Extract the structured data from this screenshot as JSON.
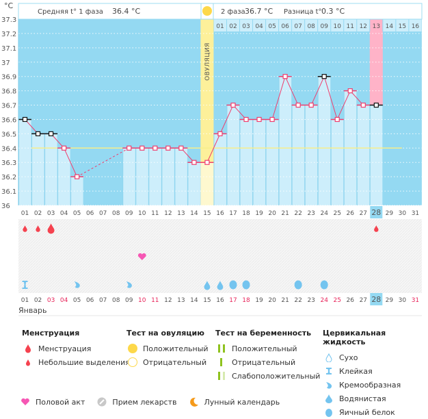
{
  "header": {
    "phase1_label": "Средняя t° 1 фаза",
    "phase1_value": "36.4 °C",
    "phase2_label": "2 фаза",
    "phase2_value": "36.7 °C",
    "diff_label": "Разница t°",
    "diff_value": "0.3 °C",
    "ovulation_label": "ОВУЛЯЦИЯ",
    "unit_label": "°C"
  },
  "colors": {
    "plot_bg": "#94d9f2",
    "bar_fill": "#cdeefb",
    "ovulation": "#fdf09a",
    "ovulation_light": "#fef8cf",
    "highlight_day": "#ffb3c8",
    "line": "#ef3e6e",
    "coverline": "#f7ee8a",
    "menstruation": "#f5424f",
    "intercourse": "#f657b4",
    "cervical": "#74c4ef",
    "red_date": "#e8245a"
  },
  "chart_data": {
    "type": "line",
    "title": "",
    "xlabel": "Январь",
    "ylabel": "°C",
    "ylim": [
      36,
      37.3
    ],
    "yticks": [
      "36",
      "36.1",
      "36.2",
      "36.3",
      "36.4",
      "36.5",
      "36.6",
      "36.7",
      "36.8",
      "36.9",
      "37",
      "37.1",
      "37.2",
      "37.3"
    ],
    "grid": true,
    "days": [
      "01",
      "02",
      "03",
      "04",
      "05",
      "06",
      "07",
      "08",
      "09",
      "10",
      "11",
      "12",
      "13",
      "14",
      "15",
      "16",
      "17",
      "18",
      "19",
      "20",
      "21",
      "22",
      "23",
      "24",
      "25",
      "26",
      "27",
      "28",
      "29",
      "30",
      "31"
    ],
    "temperatures": [
      36.6,
      36.5,
      36.5,
      36.4,
      36.2,
      null,
      null,
      null,
      36.4,
      36.4,
      36.4,
      36.4,
      36.4,
      36.3,
      36.3,
      36.5,
      36.7,
      36.6,
      36.6,
      36.6,
      36.9,
      36.7,
      36.7,
      36.9,
      36.6,
      36.8,
      36.7,
      36.7,
      null,
      null,
      null
    ],
    "special_points": [
      "01",
      "02",
      "03",
      "24",
      "28"
    ],
    "coverline": 36.4,
    "ovulation_day": "15",
    "phase2_day_labels": [
      "01",
      "02",
      "03",
      "04",
      "05",
      "06",
      "07",
      "08",
      "09",
      "10",
      "11",
      "12",
      "13",
      "14",
      "15",
      "16"
    ],
    "phase2_highlight_label": "13",
    "today": "28",
    "red_dates": [
      "03",
      "04",
      "10",
      "11",
      "17",
      "18",
      "24",
      "25",
      "31"
    ],
    "menstruation": [
      {
        "day": "01",
        "kind": "small"
      },
      {
        "day": "02",
        "kind": "small"
      },
      {
        "day": "03",
        "kind": "full"
      },
      {
        "day": "28",
        "kind": "small"
      }
    ],
    "intercourse": [
      "10"
    ],
    "cervical_fluid": [
      {
        "day": "01",
        "kind": "sticky"
      },
      {
        "day": "05",
        "kind": "creamy"
      },
      {
        "day": "09",
        "kind": "creamy"
      },
      {
        "day": "15",
        "kind": "watery"
      },
      {
        "day": "16",
        "kind": "watery"
      },
      {
        "day": "17",
        "kind": "eggwhite"
      },
      {
        "day": "18",
        "kind": "eggwhite"
      },
      {
        "day": "22",
        "kind": "eggwhite"
      },
      {
        "day": "24",
        "kind": "eggwhite"
      }
    ]
  },
  "legend": {
    "menstruation": {
      "title": "Менструация",
      "items": [
        "Менструация",
        "Небольшие выделения"
      ]
    },
    "ovulation_test": {
      "title": "Тест на овуляцию",
      "items": [
        "Положительный",
        "Отрицательный"
      ]
    },
    "pregnancy_test": {
      "title": "Тест на беременность",
      "items": [
        "Положительный",
        "Отрицательный",
        "Слабоположительный"
      ]
    },
    "cervical_fluid": {
      "title": "Цервикальная жидкость",
      "items": [
        "Сухо",
        "Клейкая",
        "Кремообразная",
        "Водянистая",
        "Яичный белок"
      ]
    },
    "other": [
      "Половой акт",
      "Прием лекарств",
      "Лунный календарь"
    ]
  }
}
